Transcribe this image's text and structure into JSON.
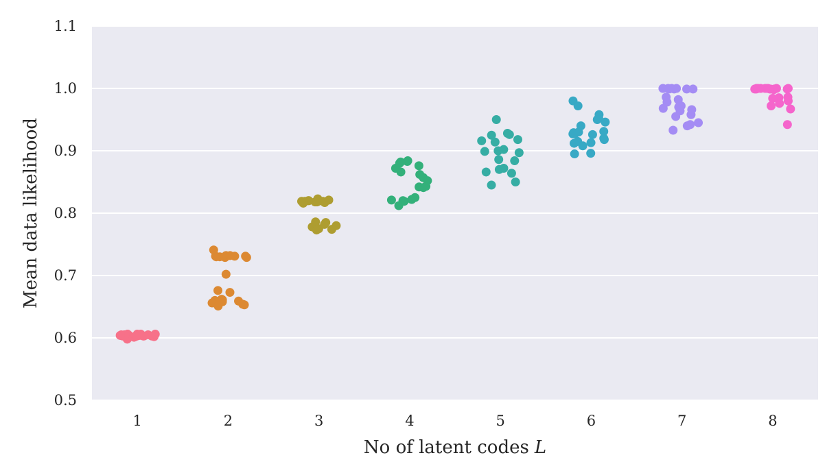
{
  "chart_data": {
    "type": "scatter",
    "subtype": "stripplot",
    "xlabel": "No of latent codes",
    "xlabel_symbol": "L",
    "ylabel": "Mean data likelihood",
    "categories": [
      "1",
      "2",
      "3",
      "4",
      "5",
      "6",
      "7",
      "8"
    ],
    "ylim": [
      0.5,
      1.1
    ],
    "yticks": [
      "0.5",
      "0.6",
      "0.7",
      "0.8",
      "0.9",
      "1.0",
      "1.1"
    ],
    "grid": true,
    "background": "#eaeaf2",
    "colors": [
      "#f77189",
      "#dc8932",
      "#ae9d31",
      "#33b07a",
      "#36ada4",
      "#38a9c5",
      "#a48cf4",
      "#f565cc"
    ],
    "series": [
      {
        "category": "1",
        "values": [
          0.604,
          0.605,
          0.603,
          0.606,
          0.602,
          0.604,
          0.605,
          0.603,
          0.606,
          0.601,
          0.604,
          0.605,
          0.603,
          0.604,
          0.606,
          0.598,
          0.603,
          0.605,
          0.604,
          0.603,
          0.605,
          0.604,
          0.602,
          0.606
        ]
      },
      {
        "category": "2",
        "values": [
          0.741,
          0.732,
          0.731,
          0.73,
          0.729,
          0.732,
          0.731,
          0.73,
          0.731,
          0.729,
          0.702,
          0.676,
          0.673,
          0.662,
          0.66,
          0.659,
          0.661,
          0.658,
          0.656,
          0.653,
          0.651,
          0.654
        ]
      },
      {
        "category": "3",
        "values": [
          0.823,
          0.82,
          0.819,
          0.818,
          0.821,
          0.817,
          0.819,
          0.82,
          0.818,
          0.816,
          0.819,
          0.786,
          0.785,
          0.782,
          0.78,
          0.778,
          0.776,
          0.775,
          0.773,
          0.774
        ]
      },
      {
        "category": "4",
        "values": [
          0.884,
          0.883,
          0.882,
          0.88,
          0.876,
          0.872,
          0.866,
          0.862,
          0.857,
          0.852,
          0.843,
          0.841,
          0.842,
          0.825,
          0.822,
          0.821,
          0.82,
          0.819,
          0.812
        ]
      },
      {
        "category": "5",
        "values": [
          0.95,
          0.928,
          0.926,
          0.925,
          0.918,
          0.916,
          0.914,
          0.902,
          0.9,
          0.899,
          0.897,
          0.886,
          0.884,
          0.872,
          0.87,
          0.866,
          0.864,
          0.85,
          0.845
        ]
      },
      {
        "category": "6",
        "values": [
          0.98,
          0.972,
          0.958,
          0.953,
          0.95,
          0.946,
          0.94,
          0.931,
          0.93,
          0.929,
          0.928,
          0.927,
          0.926,
          0.92,
          0.918,
          0.915,
          0.913,
          0.912,
          0.908,
          0.896,
          0.895
        ]
      },
      {
        "category": "7",
        "values": [
          1.0,
          1.0,
          0.999,
          0.999,
          1.0,
          0.999,
          1.0,
          0.999,
          0.986,
          0.982,
          0.978,
          0.972,
          0.97,
          0.968,
          0.966,
          0.964,
          0.958,
          0.955,
          0.945,
          0.942,
          0.94,
          0.933
        ]
      },
      {
        "category": "8",
        "values": [
          1.0,
          1.0,
          0.999,
          1.0,
          0.999,
          1.0,
          1.0,
          0.999,
          1.0,
          0.999,
          1.0,
          0.999,
          1.0,
          0.998,
          0.999,
          1.0,
          0.986,
          0.985,
          0.984,
          0.98,
          0.976,
          0.972,
          0.967,
          0.942
        ]
      }
    ]
  }
}
